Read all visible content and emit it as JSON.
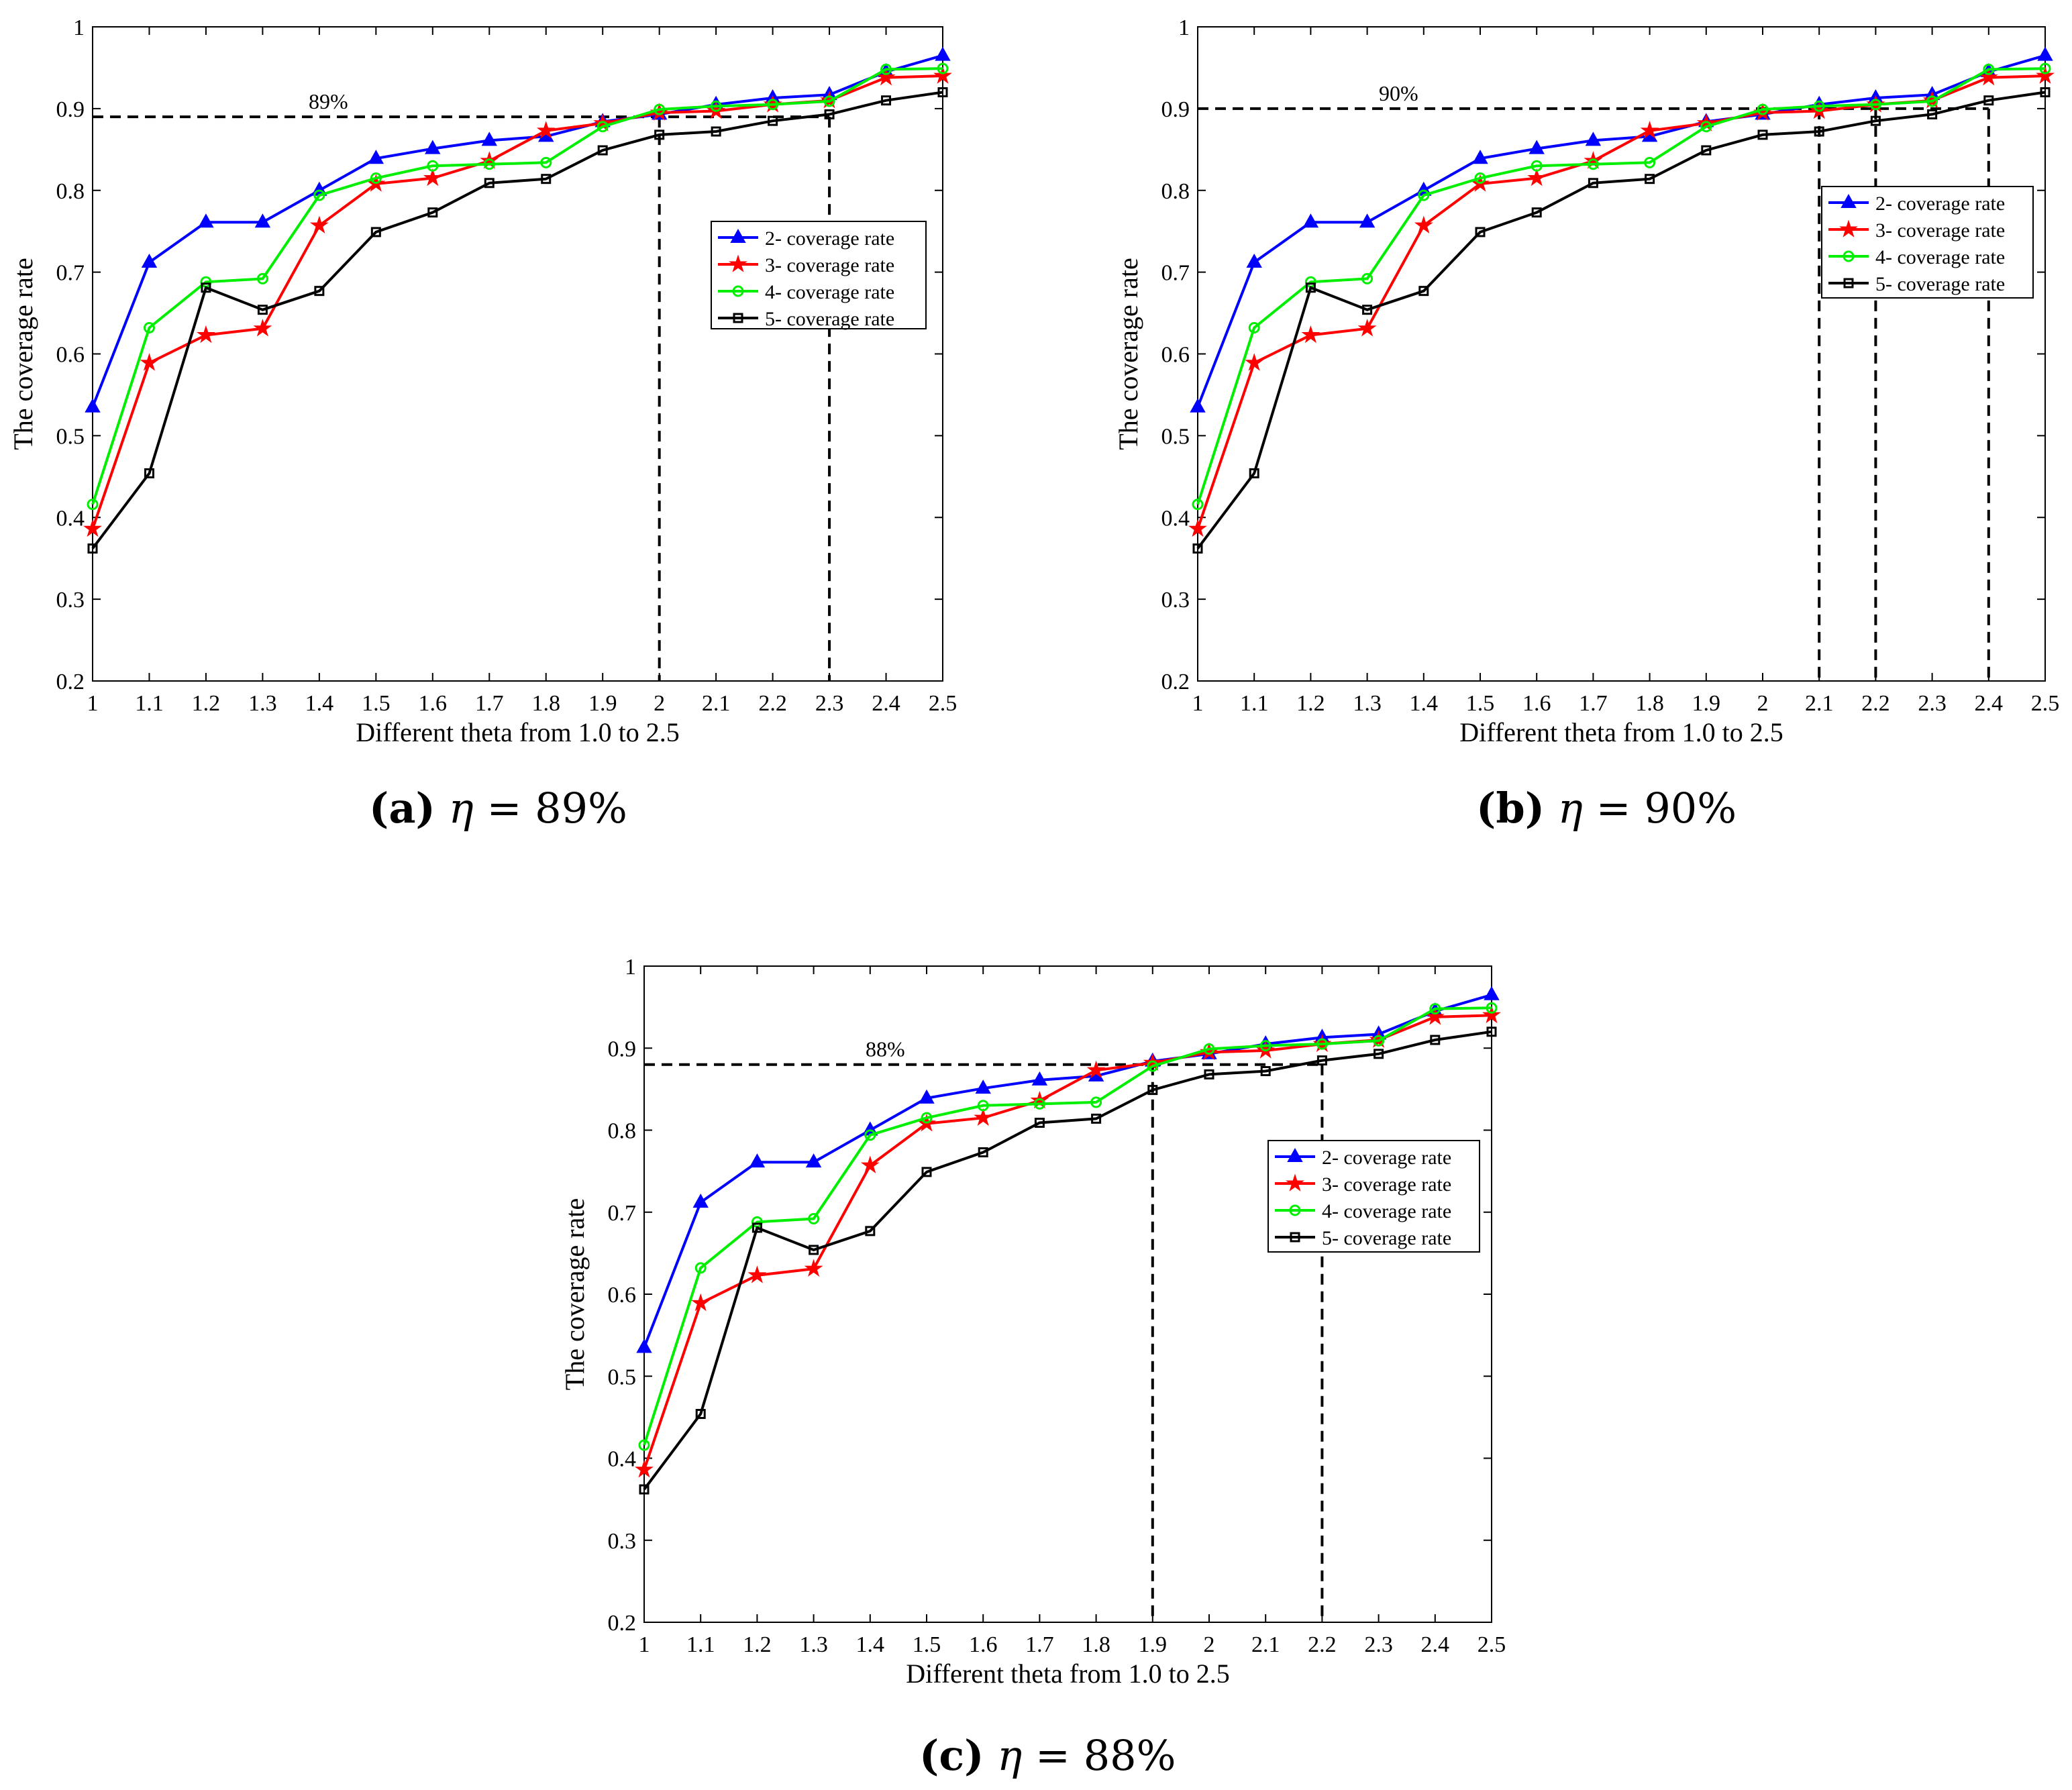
{
  "figure": {
    "captions": [
      {
        "paren_open": "(",
        "letter": "a",
        "paren_close": ")",
        "symbol": "η",
        "rel": "=",
        "value": "89%"
      },
      {
        "paren_open": "(",
        "letter": "b",
        "paren_close": ")",
        "symbol": "η",
        "rel": "=",
        "value": "90%"
      },
      {
        "paren_open": "(",
        "letter": "c",
        "paren_close": ")",
        "symbol": "η",
        "rel": "=",
        "value": "88%"
      }
    ]
  },
  "chart_data": [
    {
      "type": "line",
      "panel": "a",
      "xlabel": "Different theta from 1.0 to 2.5",
      "ylabel": "The coverage rate",
      "x": [
        1,
        1.1,
        1.2,
        1.3,
        1.4,
        1.5,
        1.6,
        1.7,
        1.8,
        1.9,
        2,
        2.1,
        2.2,
        2.3,
        2.4,
        2.5
      ],
      "xticks": [
        "1",
        "1.1",
        "1.2",
        "1.3",
        "1.4",
        "1.5",
        "1.6",
        "1.7",
        "1.8",
        "1.9",
        "2",
        "2.1",
        "2.2",
        "2.3",
        "2.4",
        "2.5"
      ],
      "yticks": [
        "0.2",
        "0.3",
        "0.4",
        "0.5",
        "0.6",
        "0.7",
        "0.8",
        "0.9",
        "1"
      ],
      "xlim": [
        1,
        2.5
      ],
      "ylim": [
        0.2,
        1
      ],
      "legend_position": "right",
      "series": [
        {
          "name": "2- coverage rate",
          "color": "#0000ff",
          "marker": "triangle",
          "values": [
            0.535,
            0.712,
            0.761,
            0.761,
            0.8,
            0.839,
            0.851,
            0.861,
            0.866,
            0.884,
            0.893,
            0.905,
            0.913,
            0.917,
            0.945,
            0.965
          ]
        },
        {
          "name": "3- coverage rate",
          "color": "#ff0000",
          "marker": "star",
          "values": [
            0.386,
            0.589,
            0.623,
            0.631,
            0.757,
            0.808,
            0.815,
            0.836,
            0.873,
            0.882,
            0.895,
            0.897,
            0.905,
            0.91,
            0.938,
            0.94
          ]
        },
        {
          "name": "4- coverage rate",
          "color": "#00ee00",
          "marker": "circle",
          "values": [
            0.416,
            0.632,
            0.688,
            0.692,
            0.794,
            0.815,
            0.83,
            0.832,
            0.834,
            0.878,
            0.899,
            0.903,
            0.905,
            0.909,
            0.948,
            0.949
          ]
        },
        {
          "name": "5- coverage rate",
          "color": "#000000",
          "marker": "square",
          "values": [
            0.362,
            0.454,
            0.681,
            0.654,
            0.677,
            0.749,
            0.773,
            0.809,
            0.814,
            0.849,
            0.868,
            0.872,
            0.885,
            0.893,
            0.91,
            0.92
          ]
        }
      ],
      "threshold": {
        "label": "89%",
        "value": 0.89,
        "vlines": [
          2.0,
          2.3
        ]
      }
    },
    {
      "type": "line",
      "panel": "b",
      "xlabel": "Different theta from 1.0 to 2.5",
      "ylabel": "The coverage rate",
      "x": [
        1,
        1.1,
        1.2,
        1.3,
        1.4,
        1.5,
        1.6,
        1.7,
        1.8,
        1.9,
        2,
        2.1,
        2.2,
        2.3,
        2.4,
        2.5
      ],
      "xticks": [
        "1",
        "1.1",
        "1.2",
        "1.3",
        "1.4",
        "1.5",
        "1.6",
        "1.7",
        "1.8",
        "1.9",
        "2",
        "2.1",
        "2.2",
        "2.3",
        "2.4",
        "2.5"
      ],
      "yticks": [
        "0.2",
        "0.3",
        "0.4",
        "0.5",
        "0.6",
        "0.7",
        "0.8",
        "0.9",
        "1"
      ],
      "xlim": [
        1,
        2.5
      ],
      "ylim": [
        0.2,
        1
      ],
      "legend_position": "right",
      "series": [
        {
          "name": "2- coverage rate",
          "color": "#0000ff",
          "marker": "triangle",
          "values": [
            0.535,
            0.712,
            0.761,
            0.761,
            0.8,
            0.839,
            0.851,
            0.861,
            0.866,
            0.884,
            0.893,
            0.905,
            0.913,
            0.917,
            0.945,
            0.965
          ]
        },
        {
          "name": "3- coverage rate",
          "color": "#ff0000",
          "marker": "star",
          "values": [
            0.386,
            0.589,
            0.623,
            0.631,
            0.757,
            0.808,
            0.815,
            0.836,
            0.873,
            0.882,
            0.895,
            0.897,
            0.905,
            0.91,
            0.938,
            0.94
          ]
        },
        {
          "name": "4- coverage rate",
          "color": "#00ee00",
          "marker": "circle",
          "values": [
            0.416,
            0.632,
            0.688,
            0.692,
            0.794,
            0.815,
            0.83,
            0.832,
            0.834,
            0.878,
            0.899,
            0.903,
            0.905,
            0.909,
            0.948,
            0.949
          ]
        },
        {
          "name": "5- coverage rate",
          "color": "#000000",
          "marker": "square",
          "values": [
            0.362,
            0.454,
            0.681,
            0.654,
            0.677,
            0.749,
            0.773,
            0.809,
            0.814,
            0.849,
            0.868,
            0.872,
            0.885,
            0.893,
            0.91,
            0.92
          ]
        }
      ],
      "threshold": {
        "label": "90%",
        "value": 0.9,
        "vlines": [
          2.1,
          2.2,
          2.4
        ]
      }
    },
    {
      "type": "line",
      "panel": "c",
      "xlabel": "Different theta from 1.0 to 2.5",
      "ylabel": "The coverage rate",
      "x": [
        1,
        1.1,
        1.2,
        1.3,
        1.4,
        1.5,
        1.6,
        1.7,
        1.8,
        1.9,
        2,
        2.1,
        2.2,
        2.3,
        2.4,
        2.5
      ],
      "xticks": [
        "1",
        "1.1",
        "1.2",
        "1.3",
        "1.4",
        "1.5",
        "1.6",
        "1.7",
        "1.8",
        "1.9",
        "2",
        "2.1",
        "2.2",
        "2.3",
        "2.4",
        "2.5"
      ],
      "yticks": [
        "0.2",
        "0.3",
        "0.4",
        "0.5",
        "0.6",
        "0.7",
        "0.8",
        "0.9",
        "1"
      ],
      "xlim": [
        1,
        2.5
      ],
      "ylim": [
        0.2,
        1
      ],
      "legend_position": "right",
      "series": [
        {
          "name": "2- coverage rate",
          "color": "#0000ff",
          "marker": "triangle",
          "values": [
            0.535,
            0.712,
            0.761,
            0.761,
            0.8,
            0.839,
            0.851,
            0.861,
            0.866,
            0.884,
            0.893,
            0.905,
            0.913,
            0.917,
            0.945,
            0.965
          ]
        },
        {
          "name": "3- coverage rate",
          "color": "#ff0000",
          "marker": "star",
          "values": [
            0.386,
            0.589,
            0.623,
            0.631,
            0.757,
            0.808,
            0.815,
            0.836,
            0.873,
            0.882,
            0.895,
            0.897,
            0.905,
            0.91,
            0.938,
            0.94
          ]
        },
        {
          "name": "4- coverage rate",
          "color": "#00ee00",
          "marker": "circle",
          "values": [
            0.416,
            0.632,
            0.688,
            0.692,
            0.794,
            0.815,
            0.83,
            0.832,
            0.834,
            0.878,
            0.899,
            0.903,
            0.905,
            0.909,
            0.948,
            0.949
          ]
        },
        {
          "name": "5- coverage rate",
          "color": "#000000",
          "marker": "square",
          "values": [
            0.362,
            0.454,
            0.681,
            0.654,
            0.677,
            0.749,
            0.773,
            0.809,
            0.814,
            0.849,
            0.868,
            0.872,
            0.885,
            0.893,
            0.91,
            0.92
          ]
        }
      ],
      "threshold": {
        "label": "88%",
        "value": 0.88,
        "vlines": [
          1.9,
          2.2
        ]
      }
    }
  ]
}
